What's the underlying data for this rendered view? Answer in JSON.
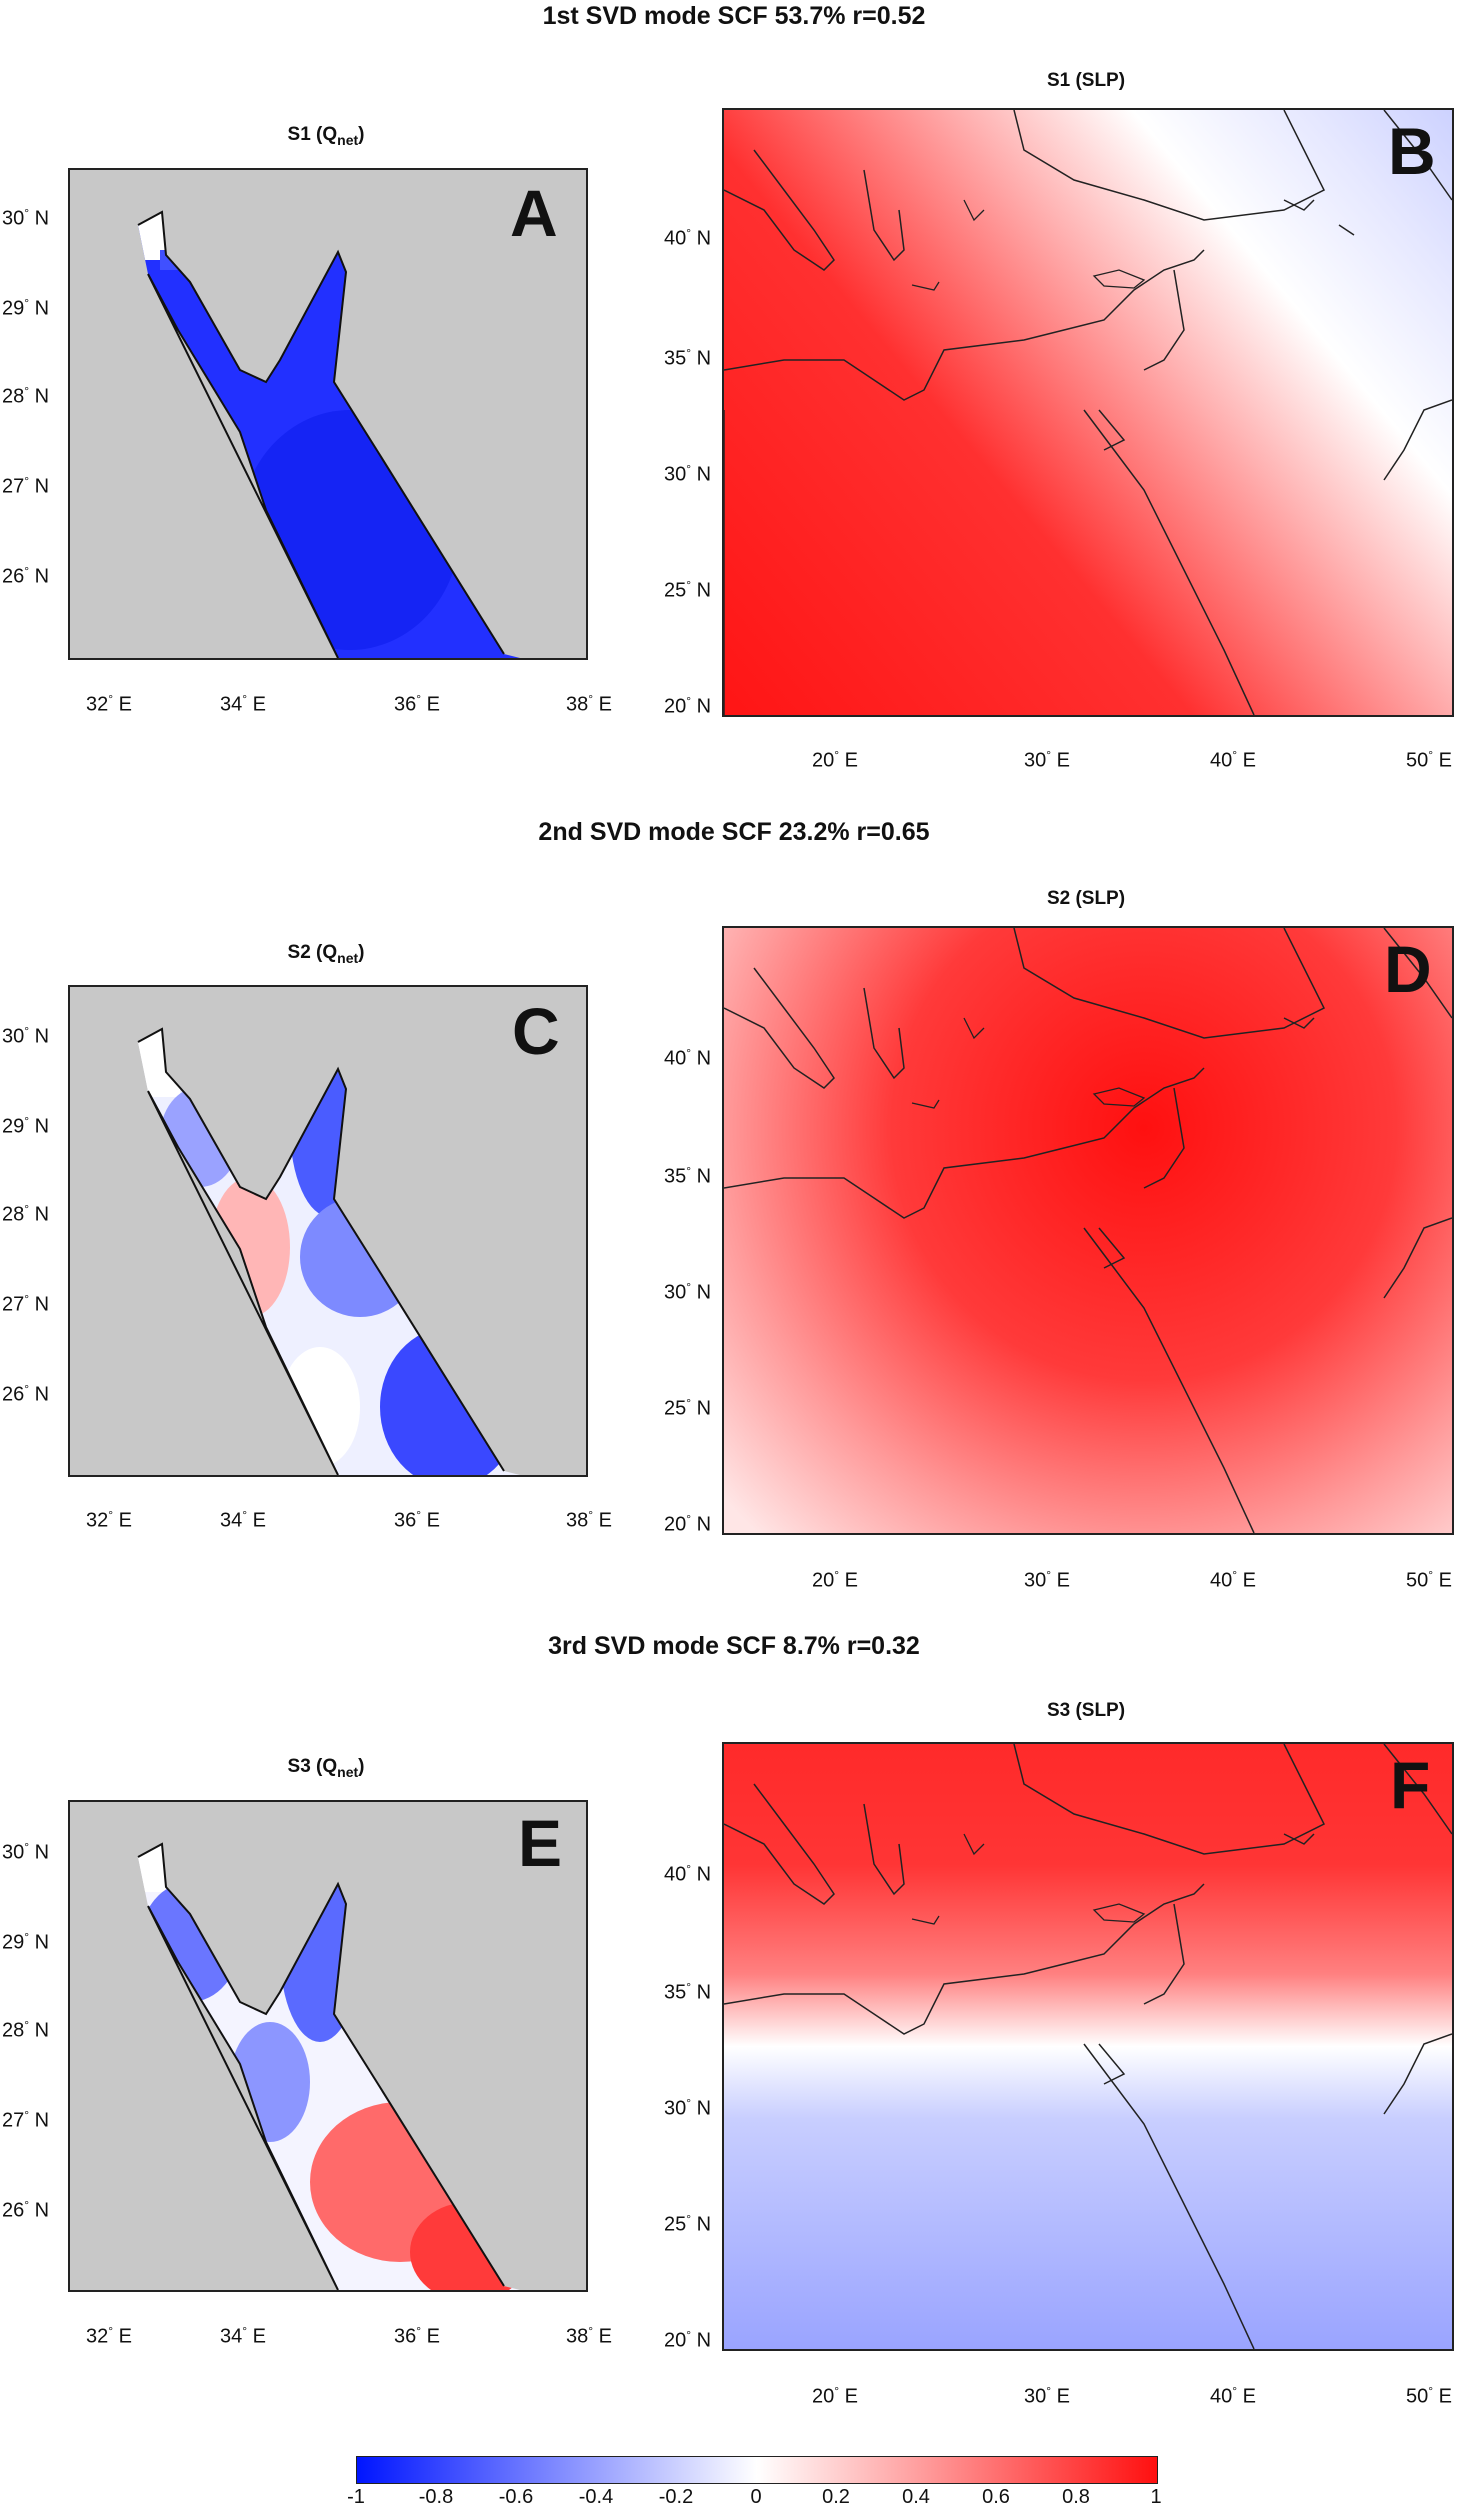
{
  "mode_titles": {
    "mode1": "1st SVD mode  SCF 53.7%   r=0.52",
    "mode2": "2nd SVD mode SCF  23.2%   r=0.65",
    "mode3": "3rd SVD mode SCF  8.7%   r=0.32"
  },
  "panels": {
    "A": {
      "title_main": "S1 (Q",
      "title_sub": "net",
      "title_end": ")",
      "letter": "A"
    },
    "B": {
      "title": "S1 (SLP)",
      "letter": "B"
    },
    "C": {
      "title_main": "S2 (Q",
      "title_sub": "net",
      "title_end": ")",
      "letter": "C"
    },
    "D": {
      "title": "S2 (SLP)",
      "letter": "D"
    },
    "E": {
      "title_main": "S3 (Q",
      "title_sub": "net",
      "title_end": ")",
      "letter": "E"
    },
    "F": {
      "title": "S3 (SLP)",
      "letter": "F"
    }
  },
  "redsea_axes": {
    "lat_labels": [
      "30",
      "29",
      "28",
      "27",
      "26"
    ],
    "lon_labels": [
      "32",
      "34",
      "36",
      "38"
    ],
    "deg": "°",
    "n": " N",
    "e": " E"
  },
  "med_axes": {
    "lat_labels": [
      "40",
      "35",
      "30",
      "25",
      "20"
    ],
    "lon_labels": [
      "20",
      "30",
      "40",
      "50"
    ],
    "deg": "°",
    "n": " N",
    "e": " E"
  },
  "colorbar": {
    "ticks": [
      "-1",
      "-0.8",
      "-0.6",
      "-0.4",
      "-0.2",
      "0",
      "0.2",
      "0.4",
      "0.6",
      "0.8",
      "1"
    ],
    "colors": {
      "neg": "#0015ff",
      "mid": "#ffffff",
      "pos": "#ff1010",
      "land": "#c8c8c8"
    }
  }
}
